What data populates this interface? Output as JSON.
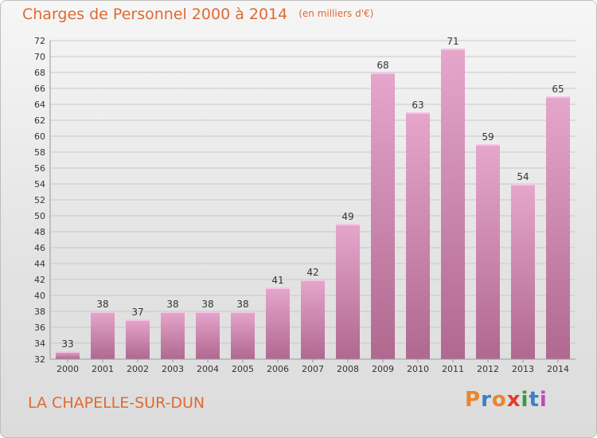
{
  "header": {
    "title": "Charges de Personnel 2000 à 2014",
    "subtitle": "(en milliers d'€)"
  },
  "footer": {
    "commune": "LA CHAPELLE-SUR-DUN",
    "brand": "Proxiti",
    "brand_colors": [
      "#e8862a",
      "#3b7fc4",
      "#e8862a",
      "#e23a2a",
      "#3b9a3b",
      "#3b7fc4",
      "#c04ac0"
    ]
  },
  "colors": {
    "title": "#de6a32",
    "bar_top": "#e6a6cc",
    "bar_bottom": "#b0688f",
    "grid": "#c8c8c8",
    "axis_text": "#333333"
  },
  "chart_data": {
    "type": "bar",
    "title": "Charges de Personnel 2000 à 2014",
    "subtitle": "(en milliers d'€)",
    "categories": [
      "2000",
      "2001",
      "2002",
      "2003",
      "2004",
      "2005",
      "2006",
      "2007",
      "2008",
      "2009",
      "2010",
      "2011",
      "2012",
      "2013",
      "2014"
    ],
    "values": [
      33,
      38,
      37,
      38,
      38,
      38,
      41,
      42,
      49,
      68,
      63,
      71,
      59,
      54,
      65
    ],
    "ylim": [
      32,
      72
    ],
    "yticks": [
      32,
      34,
      36,
      38,
      40,
      42,
      44,
      46,
      48,
      50,
      52,
      54,
      56,
      58,
      60,
      62,
      64,
      66,
      68,
      70,
      72
    ],
    "grid": true,
    "data_labels": true
  }
}
